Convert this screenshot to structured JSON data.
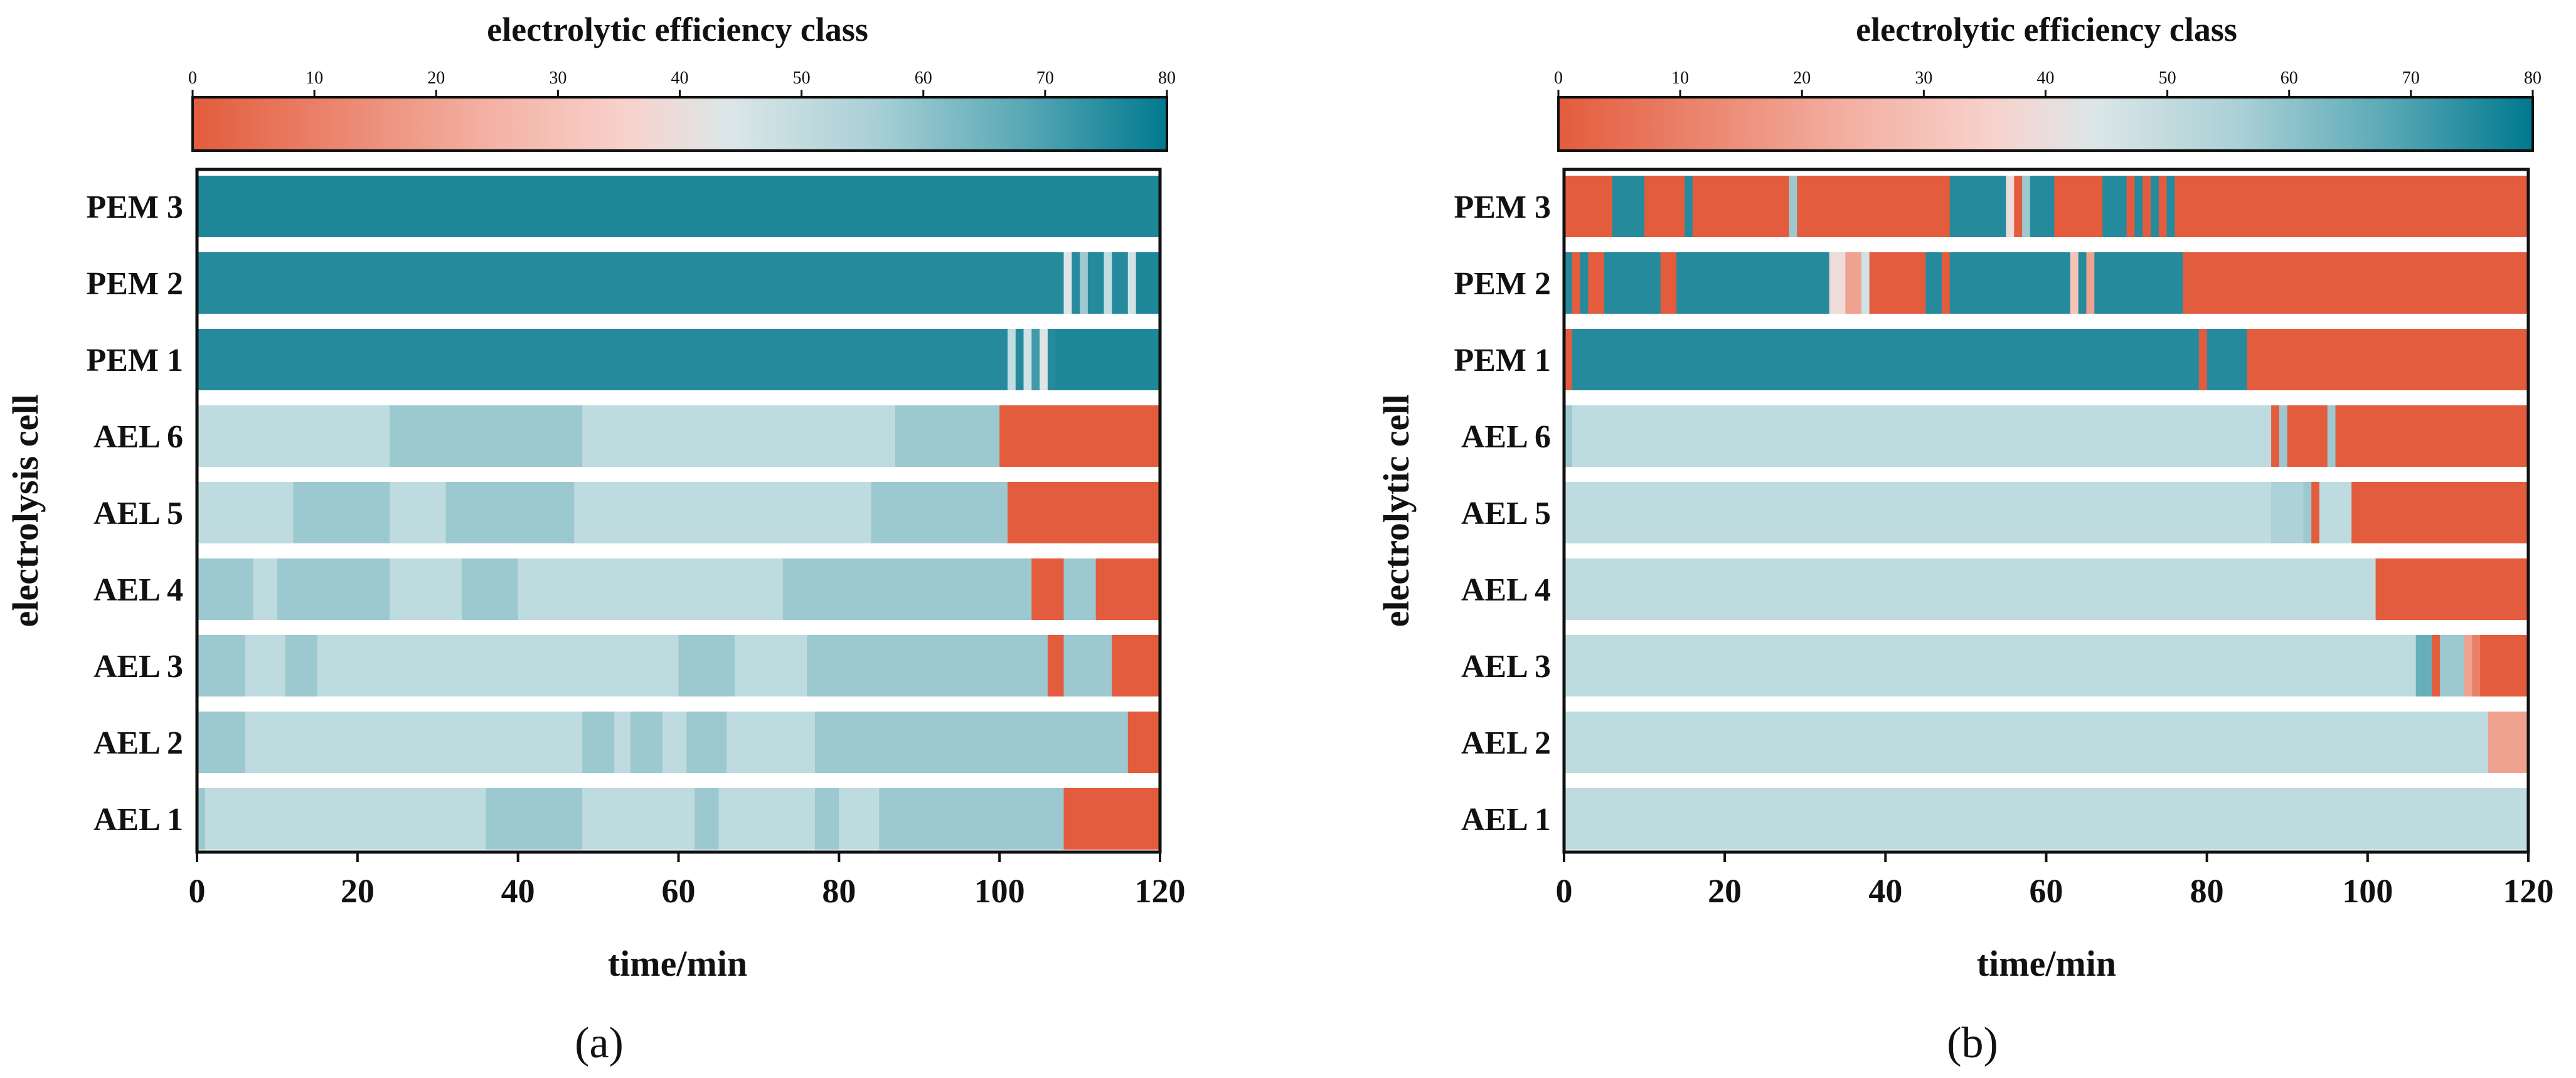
{
  "colors": {
    "low": "#E35C3D",
    "mid_light": "#F8D6D0",
    "mid": "#DCE6E8",
    "light_teal": "#BEDCE0",
    "mid_teal": "#9CC8CF",
    "high": "#00798F",
    "pem": "#268A9D",
    "frame": "#111111"
  },
  "chart_data": [
    {
      "panel_label": "(a)",
      "type": "heatmap",
      "xlabel": "time/min",
      "ylabel": "electrolysis cell",
      "xlim": [
        0,
        120
      ],
      "xticks": [
        0,
        20,
        40,
        60,
        80,
        100,
        120
      ],
      "colorbar": {
        "title": "electrolytic efficiency class",
        "ticks": [
          0,
          10,
          20,
          30,
          40,
          50,
          60,
          70,
          80
        ],
        "range": [
          0,
          80
        ]
      },
      "rows": [
        {
          "name": "PEM 3",
          "segments": [
            [
              0,
              120,
              72
            ]
          ]
        },
        {
          "name": "PEM 2",
          "segments": [
            [
              0,
              108,
              70
            ],
            [
              108,
              109,
              45
            ],
            [
              109,
              110,
              70
            ],
            [
              110,
              111,
              60
            ],
            [
              111,
              113,
              70
            ],
            [
              113,
              114,
              55
            ],
            [
              114,
              116,
              70
            ],
            [
              116,
              117,
              50
            ],
            [
              117,
              120,
              72
            ]
          ]
        },
        {
          "name": "PEM 1",
          "segments": [
            [
              0,
              101,
              70
            ],
            [
              101,
              102,
              55
            ],
            [
              102,
              103,
              70
            ],
            [
              103,
              104,
              50
            ],
            [
              104,
              105,
              68
            ],
            [
              105,
              106,
              45
            ],
            [
              106,
              107,
              70
            ],
            [
              107,
              120,
              72
            ]
          ]
        },
        {
          "name": "AEL 6",
          "segments": [
            [
              0,
              24,
              56
            ],
            [
              24,
              48,
              60
            ],
            [
              48,
              87,
              56
            ],
            [
              87,
              100,
              60
            ],
            [
              100,
              120,
              0
            ]
          ]
        },
        {
          "name": "AEL 5",
          "segments": [
            [
              0,
              12,
              56
            ],
            [
              12,
              24,
              60
            ],
            [
              24,
              31,
              56
            ],
            [
              31,
              47,
              60
            ],
            [
              47,
              84,
              56
            ],
            [
              84,
              101,
              60
            ],
            [
              101,
              120,
              0
            ]
          ]
        },
        {
          "name": "AEL 4",
          "segments": [
            [
              0,
              7,
              60
            ],
            [
              7,
              10,
              56
            ],
            [
              10,
              24,
              60
            ],
            [
              24,
              33,
              56
            ],
            [
              33,
              40,
              60
            ],
            [
              40,
              73,
              56
            ],
            [
              73,
              104,
              60
            ],
            [
              104,
              108,
              0
            ],
            [
              108,
              112,
              60
            ],
            [
              112,
              120,
              0
            ]
          ]
        },
        {
          "name": "AEL 3",
          "segments": [
            [
              0,
              6,
              60
            ],
            [
              6,
              11,
              56
            ],
            [
              11,
              15,
              60
            ],
            [
              15,
              60,
              56
            ],
            [
              60,
              67,
              60
            ],
            [
              67,
              76,
              56
            ],
            [
              76,
              106,
              60
            ],
            [
              106,
              108,
              0
            ],
            [
              108,
              114,
              60
            ],
            [
              114,
              120,
              0
            ]
          ]
        },
        {
          "name": "AEL 2",
          "segments": [
            [
              0,
              6,
              60
            ],
            [
              6,
              48,
              56
            ],
            [
              48,
              52,
              60
            ],
            [
              52,
              54,
              56
            ],
            [
              54,
              58,
              60
            ],
            [
              58,
              61,
              56
            ],
            [
              61,
              66,
              60
            ],
            [
              66,
              77,
              56
            ],
            [
              77,
              116,
              60
            ],
            [
              116,
              120,
              0
            ]
          ]
        },
        {
          "name": "AEL 1",
          "segments": [
            [
              0,
              1,
              60
            ],
            [
              1,
              36,
              56
            ],
            [
              36,
              48,
              60
            ],
            [
              48,
              62,
              56
            ],
            [
              62,
              65,
              60
            ],
            [
              65,
              77,
              56
            ],
            [
              77,
              80,
              60
            ],
            [
              80,
              85,
              56
            ],
            [
              85,
              108,
              60
            ],
            [
              108,
              120,
              0
            ]
          ]
        }
      ]
    },
    {
      "panel_label": "(b)",
      "type": "heatmap",
      "xlabel": "time/min",
      "ylabel": "electrolytic cell",
      "xlim": [
        0,
        120
      ],
      "xticks": [
        0,
        20,
        40,
        60,
        80,
        100,
        120
      ],
      "colorbar": {
        "title": "electrolytic efficiency class",
        "ticks": [
          0,
          10,
          20,
          30,
          40,
          50,
          60,
          70,
          80
        ],
        "range": [
          0,
          80
        ]
      },
      "rows": [
        {
          "name": "PEM 3",
          "segments": [
            [
              0,
              6,
              0
            ],
            [
              6,
              10,
              70
            ],
            [
              10,
              15,
              0
            ],
            [
              15,
              16,
              70
            ],
            [
              16,
              28,
              0
            ],
            [
              28,
              29,
              60
            ],
            [
              29,
              48,
              0
            ],
            [
              48,
              55,
              70
            ],
            [
              55,
              56,
              40
            ],
            [
              56,
              57,
              0
            ],
            [
              57,
              58,
              60
            ],
            [
              58,
              61,
              70
            ],
            [
              61,
              67,
              0
            ],
            [
              67,
              70,
              70
            ],
            [
              70,
              71,
              0
            ],
            [
              71,
              72,
              70
            ],
            [
              72,
              73,
              0
            ],
            [
              73,
              74,
              70
            ],
            [
              74,
              75,
              0
            ],
            [
              75,
              76,
              70
            ],
            [
              76,
              120,
              0
            ]
          ]
        },
        {
          "name": "PEM 2",
          "segments": [
            [
              0,
              1,
              70
            ],
            [
              1,
              2,
              0
            ],
            [
              2,
              3,
              70
            ],
            [
              3,
              5,
              0
            ],
            [
              5,
              12,
              70
            ],
            [
              12,
              14,
              0
            ],
            [
              14,
              33,
              70
            ],
            [
              33,
              35,
              40
            ],
            [
              35,
              37,
              20
            ],
            [
              37,
              38,
              50
            ],
            [
              38,
              45,
              0
            ],
            [
              45,
              47,
              70
            ],
            [
              47,
              48,
              0
            ],
            [
              48,
              63,
              70
            ],
            [
              63,
              64,
              30
            ],
            [
              64,
              65,
              70
            ],
            [
              65,
              66,
              20
            ],
            [
              66,
              77,
              70
            ],
            [
              77,
              120,
              0
            ]
          ]
        },
        {
          "name": "PEM 1",
          "segments": [
            [
              0,
              1,
              0
            ],
            [
              1,
              79,
              70
            ],
            [
              79,
              80,
              0
            ],
            [
              80,
              85,
              70
            ],
            [
              85,
              120,
              0
            ]
          ]
        },
        {
          "name": "AEL 6",
          "segments": [
            [
              0,
              1,
              60
            ],
            [
              1,
              88,
              56
            ],
            [
              88,
              89,
              0
            ],
            [
              89,
              90,
              60
            ],
            [
              90,
              91,
              0
            ],
            [
              91,
              95,
              0
            ],
            [
              95,
              96,
              60
            ],
            [
              96,
              120,
              0
            ]
          ]
        },
        {
          "name": "AEL 5",
          "segments": [
            [
              0,
              88,
              56
            ],
            [
              88,
              92,
              58
            ],
            [
              92,
              93,
              60
            ],
            [
              93,
              94,
              0
            ],
            [
              94,
              98,
              56
            ],
            [
              98,
              100,
              0
            ],
            [
              100,
              120,
              0
            ]
          ]
        },
        {
          "name": "AEL 4",
          "segments": [
            [
              0,
              101,
              56
            ],
            [
              101,
              120,
              0
            ]
          ]
        },
        {
          "name": "AEL 3",
          "segments": [
            [
              0,
              106,
              56
            ],
            [
              106,
              108,
              65
            ],
            [
              108,
              109,
              0
            ],
            [
              109,
              112,
              60
            ],
            [
              112,
              113,
              20
            ],
            [
              113,
              114,
              10
            ],
            [
              114,
              120,
              0
            ]
          ]
        },
        {
          "name": "AEL 2",
          "segments": [
            [
              0,
              115,
              56
            ],
            [
              115,
              120,
              20
            ]
          ]
        },
        {
          "name": "AEL 1",
          "segments": [
            [
              0,
              120,
              56
            ]
          ]
        }
      ]
    }
  ]
}
